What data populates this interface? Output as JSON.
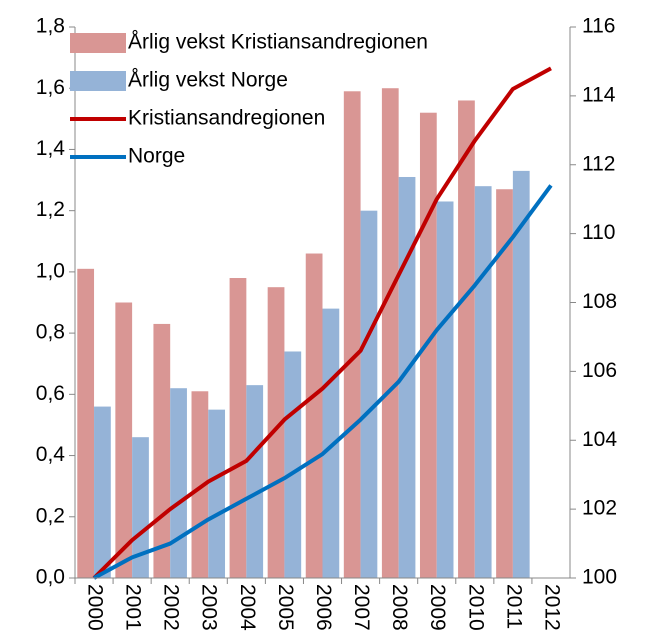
{
  "chart_data": {
    "type": "combo",
    "categories": [
      "2000",
      "2001",
      "2002",
      "2003",
      "2004",
      "2005",
      "2006",
      "2007",
      "2008",
      "2009",
      "2010",
      "2011",
      "2012"
    ],
    "series": [
      {
        "name": "Årlig vekst Kristiansandregionen",
        "type": "bar",
        "color": "#d99694",
        "values": [
          1.01,
          0.9,
          0.83,
          0.61,
          0.98,
          0.95,
          1.06,
          1.59,
          1.6,
          1.52,
          1.56,
          1.27,
          null
        ]
      },
      {
        "name": "Årlig vekst Norge",
        "type": "bar",
        "color": "#95b3d7",
        "values": [
          0.56,
          0.46,
          0.62,
          0.55,
          0.63,
          0.74,
          0.88,
          1.2,
          1.31,
          1.23,
          1.28,
          1.33,
          null
        ]
      },
      {
        "name": "Kristiansandregionen",
        "type": "line",
        "axis": "y2",
        "color": "#c00000",
        "values": [
          100,
          101.1,
          102.0,
          102.8,
          103.4,
          104.6,
          105.5,
          106.6,
          108.8,
          111.0,
          112.7,
          114.2,
          114.8
        ]
      },
      {
        "name": "Norge",
        "type": "line",
        "axis": "y2",
        "color": "#0070c0",
        "values": [
          100,
          100.6,
          101.0,
          101.7,
          102.3,
          102.9,
          103.6,
          104.6,
          105.7,
          107.2,
          108.5,
          109.9,
          111.4
        ]
      }
    ],
    "ylim": [
      0,
      1.8
    ],
    "yticks": [
      {
        "value": 0,
        "label": "0,0"
      },
      {
        "value": 0.2,
        "label": "0,2"
      },
      {
        "value": 0.4,
        "label": "0,4"
      },
      {
        "value": 0.6,
        "label": "0,6"
      },
      {
        "value": 0.8,
        "label": "0,8"
      },
      {
        "value": 1.0,
        "label": "1,0"
      },
      {
        "value": 1.2,
        "label": "1,2"
      },
      {
        "value": 1.4,
        "label": "1,4"
      },
      {
        "value": 1.6,
        "label": "1,6"
      },
      {
        "value": 1.8,
        "label": "1,8"
      }
    ],
    "y2lim": [
      100,
      116
    ],
    "y2ticks": [
      100,
      102,
      104,
      106,
      108,
      110,
      112,
      114,
      116
    ],
    "legend": "top-left"
  }
}
